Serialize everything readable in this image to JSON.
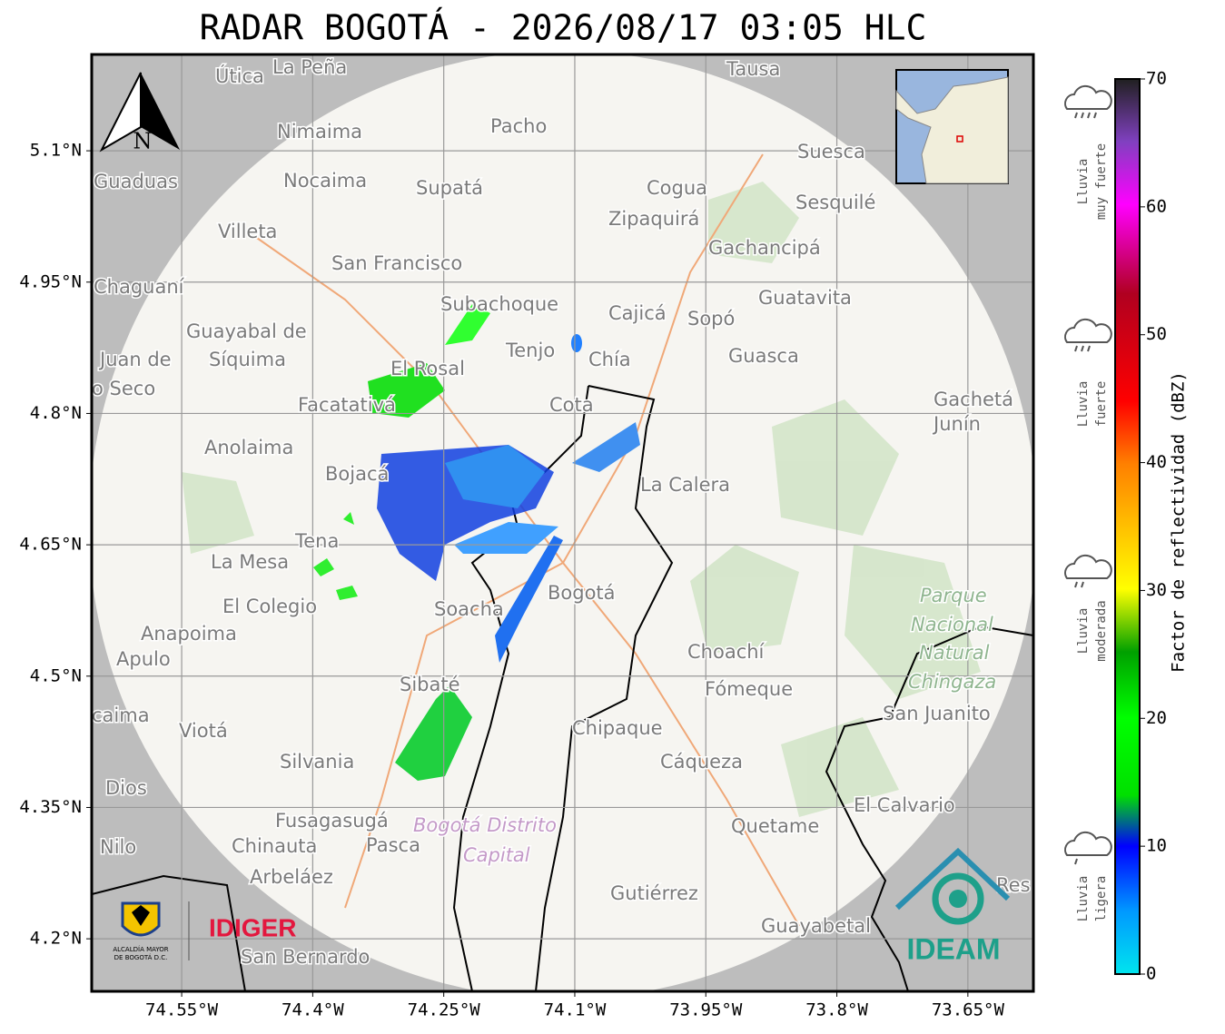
{
  "title": "RADAR BOGOTÁ - 2026/08/17 03:05 HLC",
  "map": {
    "xlim": [
      -74.653,
      -73.575
    ],
    "ylim": [
      4.14,
      5.21
    ],
    "xticks": [
      {
        "value": -74.55,
        "label": "74.55°W"
      },
      {
        "value": -74.4,
        "label": "74.4°W"
      },
      {
        "value": -74.25,
        "label": "74.25°W"
      },
      {
        "value": -74.1,
        "label": "74.1°W"
      },
      {
        "value": -73.95,
        "label": "73.95°W"
      },
      {
        "value": -73.8,
        "label": "73.8°W"
      },
      {
        "value": -73.65,
        "label": "73.65°W"
      }
    ],
    "yticks": [
      {
        "value": 4.2,
        "label": "4.2°N"
      },
      {
        "value": 4.35,
        "label": "4.35°N"
      },
      {
        "value": 4.5,
        "label": "4.5°N"
      },
      {
        "value": 4.65,
        "label": "4.65°N"
      },
      {
        "value": 4.8,
        "label": "4.8°N"
      },
      {
        "value": 4.95,
        "label": "4.95°N"
      },
      {
        "value": 5.1,
        "label": "5.1°N"
      }
    ],
    "grid": true,
    "north": "N",
    "places": [
      "La Peña",
      "Útica",
      "Tausa",
      "Pacho",
      "Nimaima",
      "Guaduas",
      "Nocaima",
      "Supatá",
      "Cogua",
      "Suesca",
      "Sesquilé",
      "Zipaquirá",
      "Villeta",
      "Gachancipá",
      "San Francisco",
      "Chaguaní",
      "Guatavita",
      "Subachoque",
      "Cajicá",
      "Sopó",
      "Guayabal de",
      "Síquima",
      "Juan de",
      "Tenjo",
      "Chía",
      "Guasca",
      "El Rosal",
      "o Seco",
      "Facatativá",
      "Cota",
      "Gachetá",
      "Junín",
      "Anolaima",
      "Bojacá",
      "La Calera",
      "Tena",
      "La Mesa",
      "Bogotá",
      "El Colegio",
      "Soacha",
      "Anapoima",
      "Apulo",
      "Choachí",
      "Sibaté",
      "Fómeque",
      "San Juanito",
      "caima",
      "Viotá",
      "Chipaque",
      "Silvania",
      "Cáqueza",
      "Dios",
      "El Calvario",
      "Fusagasugá",
      "Quetame",
      "Nilo",
      "Chinauta",
      "Pasca",
      "Arbeláez",
      "Gutiérrez",
      "Guayabetal",
      "San Bernardo",
      "Res"
    ],
    "park": [
      "Parque",
      "Nacional",
      "Natural",
      "Chingaza"
    ],
    "district": [
      "Bogotá Distrito",
      "Capital"
    ]
  },
  "colorbar": {
    "label": "Factor de reflectividad (dBZ)",
    "lim": [
      0,
      70
    ],
    "ticks": [
      0,
      10,
      20,
      30,
      40,
      50,
      60,
      70
    ]
  },
  "legend": [
    [
      "Lluvia",
      "muy fuerte"
    ],
    [
      "Lluvia",
      "fuerte"
    ],
    [
      "Lluvia",
      "moderada"
    ],
    [
      "Lluvia",
      "ligera"
    ]
  ],
  "logos": {
    "alcaldia": [
      "ALCALDÍA MAYOR",
      "DE BOGOTÁ D.C."
    ],
    "idiger": "IDIGER",
    "ideam": "IDEAM"
  }
}
